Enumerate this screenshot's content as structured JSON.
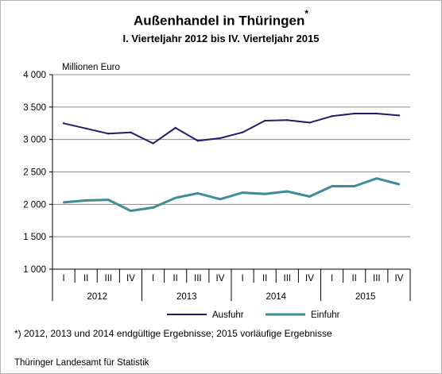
{
  "page": {
    "title": "Außenhandel in Thüringen",
    "title_marker": "*",
    "subtitle": "I. Vierteljahr 2012 bis IV. Vierteljahr 2015",
    "footnote": "*) 2012, 2013 und 2014 endgültige Ergebnisse; 2015 vorläufige Ergebnisse",
    "source": "Thüringer Landesamt für Statistik"
  },
  "chart_data": {
    "type": "line",
    "title": "Außenhandel in Thüringen",
    "ylabel": "Millionen  Euro",
    "ylim": [
      1000,
      4000
    ],
    "yticks": [
      1000,
      1500,
      2000,
      2500,
      3000,
      3500,
      4000
    ],
    "ytick_labels": [
      "1 000",
      "1 500",
      "2 000",
      "2 500",
      "3 000",
      "3 500",
      "4 000"
    ],
    "grid": true,
    "legend": "bottom",
    "categories": [
      "I",
      "II",
      "III",
      "IV",
      "I",
      "II",
      "III",
      "IV",
      "I",
      "II",
      "III",
      "IV",
      "I",
      "II",
      "III",
      "IV"
    ],
    "groups": [
      {
        "label": "2012",
        "count": 4
      },
      {
        "label": "2013",
        "count": 4
      },
      {
        "label": "2014",
        "count": 4
      },
      {
        "label": "2015",
        "count": 4
      }
    ],
    "series": [
      {
        "name": "Ausfuhr",
        "color": "#1f1d6e",
        "values": [
          3250,
          3170,
          3090,
          3110,
          2940,
          3180,
          2980,
          3020,
          3110,
          3290,
          3300,
          3260,
          3360,
          3400,
          3400,
          3370
        ]
      },
      {
        "name": "Einfuhr",
        "color": "#3d8c96",
        "values": [
          2030,
          2060,
          2070,
          1900,
          1950,
          2100,
          2170,
          2080,
          2180,
          2160,
          2200,
          2120,
          2280,
          2280,
          2400,
          2310
        ]
      }
    ]
  }
}
